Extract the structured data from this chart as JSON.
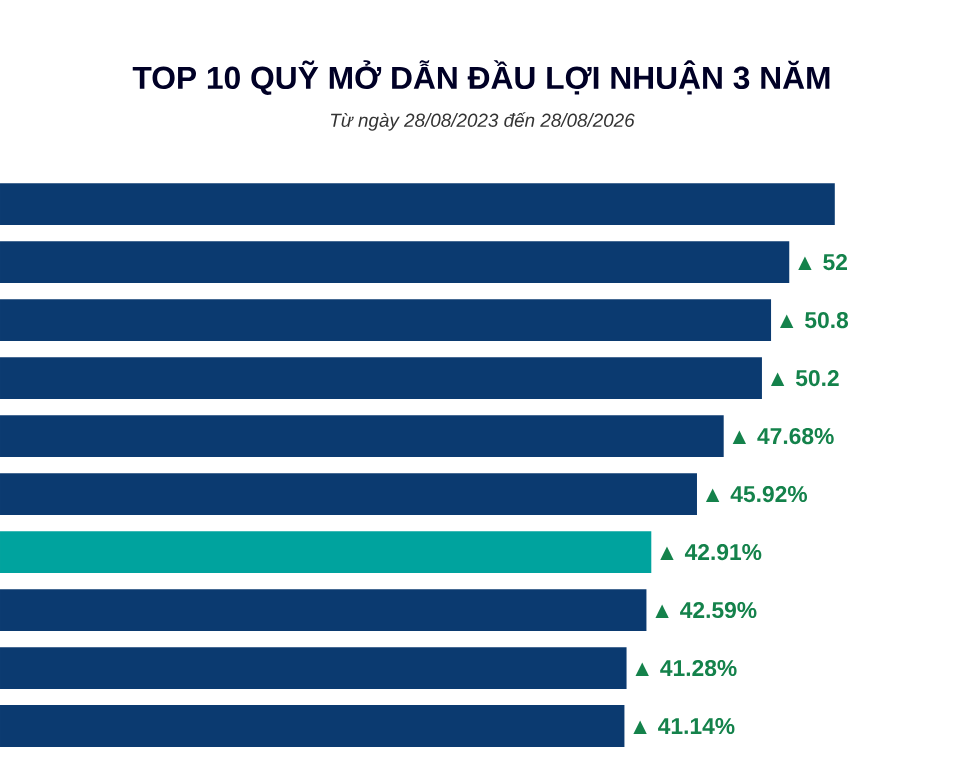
{
  "chart_data": {
    "type": "bar",
    "orientation": "horizontal",
    "title": "TOP 10 QUỸ MỞ DẪN ĐẦU LỢI NHUẬN 3 NĂM",
    "subtitle": "*Từ ngày 28/08/2023 đến 28/08/2026*",
    "categories": [
      null,
      null,
      null,
      null,
      null,
      null,
      null,
      null,
      null,
      null
    ],
    "values": [
      55,
      52,
      50.8,
      50.2,
      47.68,
      45.92,
      42.91,
      42.59,
      41.28,
      41.14
    ],
    "colors": [
      "#0b3a70",
      "#0b3a70",
      "#0b3a70",
      "#0b3a70",
      "#0b3a70",
      "#0b3a70",
      "#00a39e",
      "#0b3a70",
      "#0b3a70",
      "#0b3a70"
    ],
    "value_labels": [
      null,
      "▲ 52",
      "▲ 50.8",
      "▲ 50.2",
      "▲ 47.68%",
      "▲ 45.92%",
      "▲ 42.91%",
      "▲ 42.59%",
      "▲ 41.28%",
      "▲ 41.14%"
    ]
  }
}
